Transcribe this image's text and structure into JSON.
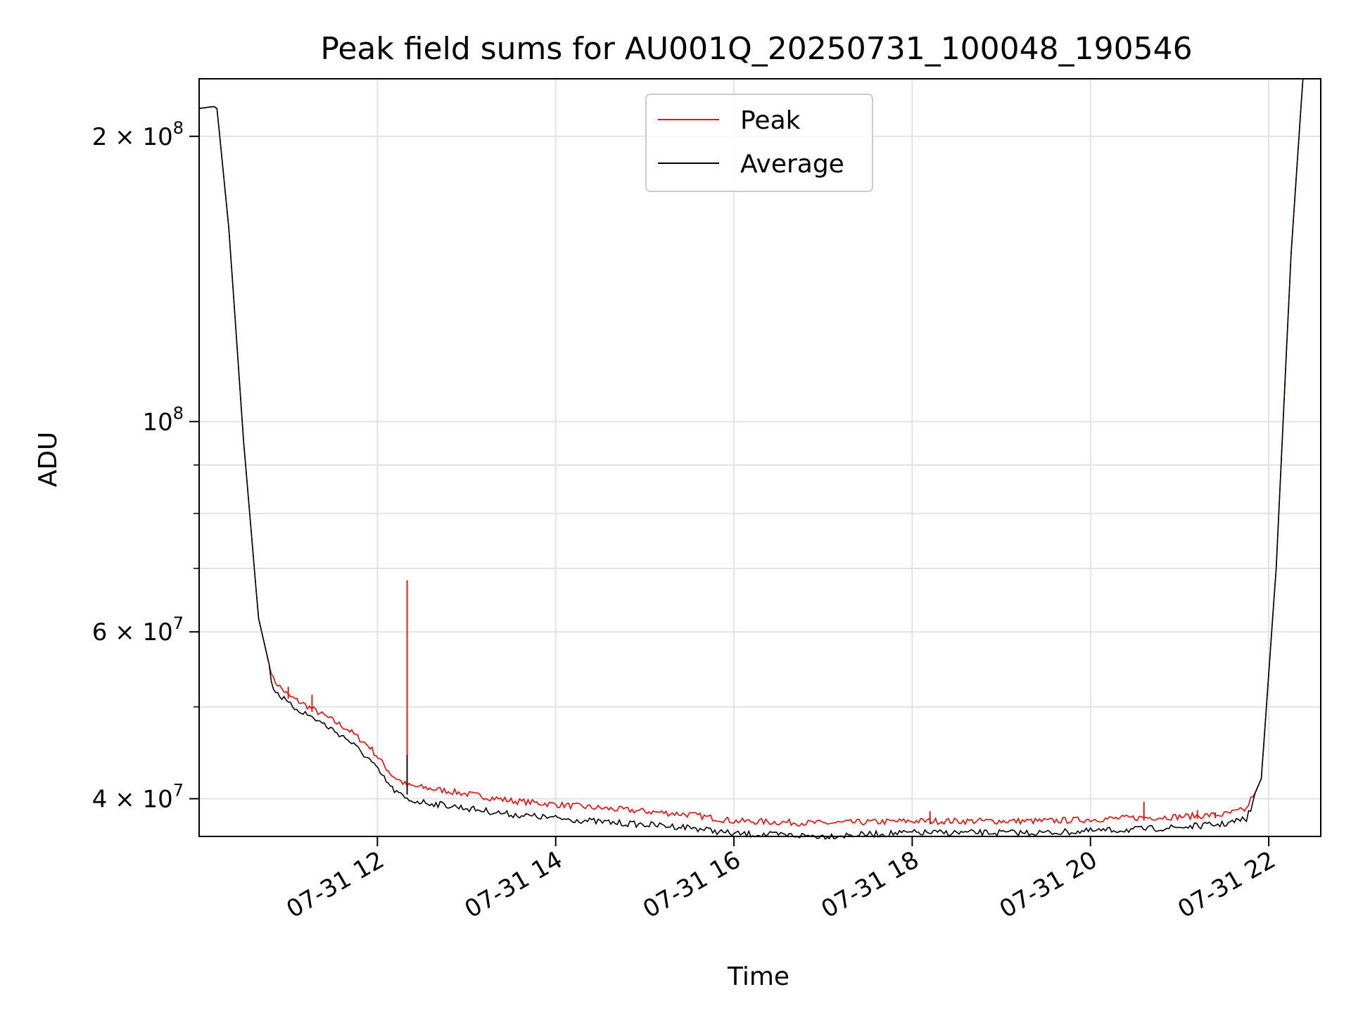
{
  "chart_data": {
    "type": "line",
    "title": "Peak field sums for AU001Q_20250731_100048_190546",
    "xlabel": "Time",
    "ylabel": "ADU",
    "yscale": "log",
    "xlim": [
      "2025-07-31 10:00",
      "2025-07-31 22:35"
    ],
    "ylim": [
      36500000,
      230000000
    ],
    "grid": true,
    "legend_placement": "upper center",
    "x_ticks": [
      {
        "value": "2025-07-31 12:00",
        "label": "07-31 12"
      },
      {
        "value": "2025-07-31 14:00",
        "label": "07-31 14"
      },
      {
        "value": "2025-07-31 16:00",
        "label": "07-31 16"
      },
      {
        "value": "2025-07-31 18:00",
        "label": "07-31 18"
      },
      {
        "value": "2025-07-31 20:00",
        "label": "07-31 20"
      },
      {
        "value": "2025-07-31 22:00",
        "label": "07-31 22"
      }
    ],
    "y_major_ticks": [
      {
        "value": 40000000,
        "mantissa": "4",
        "exponent": "7"
      },
      {
        "value": 60000000,
        "mantissa": "6",
        "exponent": "7"
      },
      {
        "value": 100000000,
        "mantissa": "",
        "exponent": "8"
      },
      {
        "value": 200000000,
        "mantissa": "2",
        "exponent": "8"
      }
    ],
    "y_minor_ticks": [
      50000000,
      70000000,
      80000000,
      90000000
    ],
    "series": [
      {
        "name": "Peak",
        "color": "#ff0000",
        "x": [
          "2025-07-31 10:00",
          "2025-07-31 10:10",
          "2025-07-31 10:12",
          "2025-07-31 10:20",
          "2025-07-31 10:30",
          "2025-07-31 10:40",
          "2025-07-31 10:50",
          "2025-07-31 11:00",
          "2025-07-31 11:20",
          "2025-07-31 11:40",
          "2025-07-31 11:55",
          "2025-07-31 12:10",
          "2025-07-31 12:20",
          "2025-07-31 12:45",
          "2025-07-31 13:30",
          "2025-07-31 14:30",
          "2025-07-31 15:30",
          "2025-07-31 16:00",
          "2025-07-31 17:00",
          "2025-07-31 18:00",
          "2025-07-31 19:30",
          "2025-07-31 20:30",
          "2025-07-31 21:00",
          "2025-07-31 21:30",
          "2025-07-31 21:45",
          "2025-07-31 21:55",
          "2025-07-31 22:05",
          "2025-07-31 22:15",
          "2025-07-31 22:23"
        ],
        "values": [
          214000000,
          215000000,
          214000000,
          160000000,
          95000000,
          62000000,
          53000000,
          51000000,
          49000000,
          47000000,
          45000000,
          42000000,
          41000000,
          40500000,
          39500000,
          38800000,
          38200000,
          37600000,
          37400000,
          37600000,
          37600000,
          37900000,
          38000000,
          38200000,
          38700000,
          42000000,
          70000000,
          150000000,
          230000000
        ]
      },
      {
        "name": "Average",
        "color": "#000000",
        "x": [
          "2025-07-31 10:00",
          "2025-07-31 10:10",
          "2025-07-31 10:12",
          "2025-07-31 10:20",
          "2025-07-31 10:30",
          "2025-07-31 10:40",
          "2025-07-31 10:50",
          "2025-07-31 11:00",
          "2025-07-31 11:20",
          "2025-07-31 11:40",
          "2025-07-31 11:55",
          "2025-07-31 12:10",
          "2025-07-31 12:20",
          "2025-07-31 12:45",
          "2025-07-31 13:30",
          "2025-07-31 14:30",
          "2025-07-31 15:30",
          "2025-07-31 16:00",
          "2025-07-31 17:00",
          "2025-07-31 18:00",
          "2025-07-31 19:30",
          "2025-07-31 20:30",
          "2025-07-31 21:00",
          "2025-07-31 21:30",
          "2025-07-31 21:45",
          "2025-07-31 21:55",
          "2025-07-31 22:05",
          "2025-07-31 22:15",
          "2025-07-31 22:23"
        ],
        "values": [
          214000000,
          215000000,
          214000000,
          160000000,
          95000000,
          62000000,
          53000000,
          51000000,
          49000000,
          46800000,
          44500000,
          41500000,
          40400000,
          39900000,
          39000000,
          38300000,
          37800000,
          37200000,
          37000000,
          37300000,
          37300000,
          37600000,
          37800000,
          38100000,
          38600000,
          42000000,
          70000000,
          150000000,
          230000000
        ]
      }
    ],
    "spikes": [
      {
        "series": "Peak",
        "x": "2025-07-31 12:20",
        "value": 68000000
      },
      {
        "series": "Average",
        "x": "2025-07-31 12:20",
        "value": 44500000
      },
      {
        "series": "Peak",
        "x": "2025-07-31 11:00",
        "value": 52500000
      },
      {
        "series": "Peak",
        "x": "2025-07-31 11:16",
        "value": 51500000
      },
      {
        "series": "Peak",
        "x": "2025-07-31 18:12",
        "value": 38800000
      },
      {
        "series": "Peak",
        "x": "2025-07-31 20:36",
        "value": 39700000
      },
      {
        "series": "Peak",
        "x": "2025-07-31 21:12",
        "value": 38900000
      },
      {
        "series": "Peak",
        "x": "2025-07-31 21:24",
        "value": 38700000
      }
    ]
  }
}
